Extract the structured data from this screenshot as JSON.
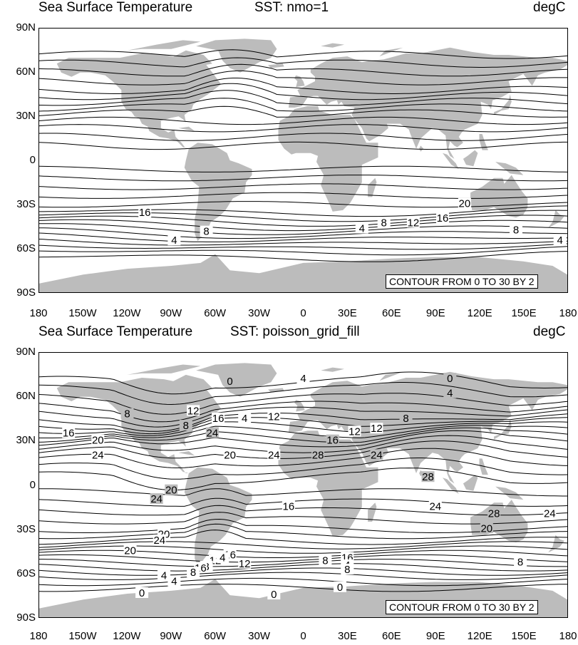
{
  "panels": [
    {
      "title_left": "Sea Surface Temperature",
      "title_center": "SST: nmo=1",
      "title_right": "degC",
      "contour_info": "CONTOUR FROM 0 TO 30 BY 2",
      "contour_labels": [
        "16",
        "4",
        "8",
        "4",
        "8",
        "12",
        "16",
        "20",
        "8",
        "4"
      ]
    },
    {
      "title_left": "Sea Surface Temperature",
      "title_center": "SST: poisson_grid_fill",
      "title_right": "degC",
      "contour_info": "CONTOUR FROM 0 TO 30 BY 2",
      "contour_labels": [
        "0",
        "4",
        "0",
        "4",
        "8",
        "12",
        "16",
        "12",
        "8",
        "16",
        "24",
        "12",
        "20",
        "16",
        "12",
        "8",
        "4",
        "24",
        "20",
        "24",
        "28",
        "24",
        "28",
        "24",
        "20",
        "16",
        "24",
        "28",
        "24",
        "20",
        "20",
        "12",
        "16",
        "8",
        "4",
        "12",
        "16",
        "8",
        "4",
        "0",
        "0",
        "4",
        "8",
        "0",
        "24",
        "16",
        "20",
        "8",
        "4",
        "8"
      ]
    }
  ],
  "lat_labels": [
    "90N",
    "60N",
    "30N",
    "0",
    "30S",
    "60S",
    "90S"
  ],
  "lon_labels": [
    "180",
    "150W",
    "120W",
    "90W",
    "60W",
    "30W",
    "0",
    "30E",
    "60E",
    "90E",
    "120E",
    "150E",
    "180"
  ],
  "colors": {
    "land": "#bcbcbc",
    "ocean": "#ffffff",
    "contour": "#000000"
  }
}
